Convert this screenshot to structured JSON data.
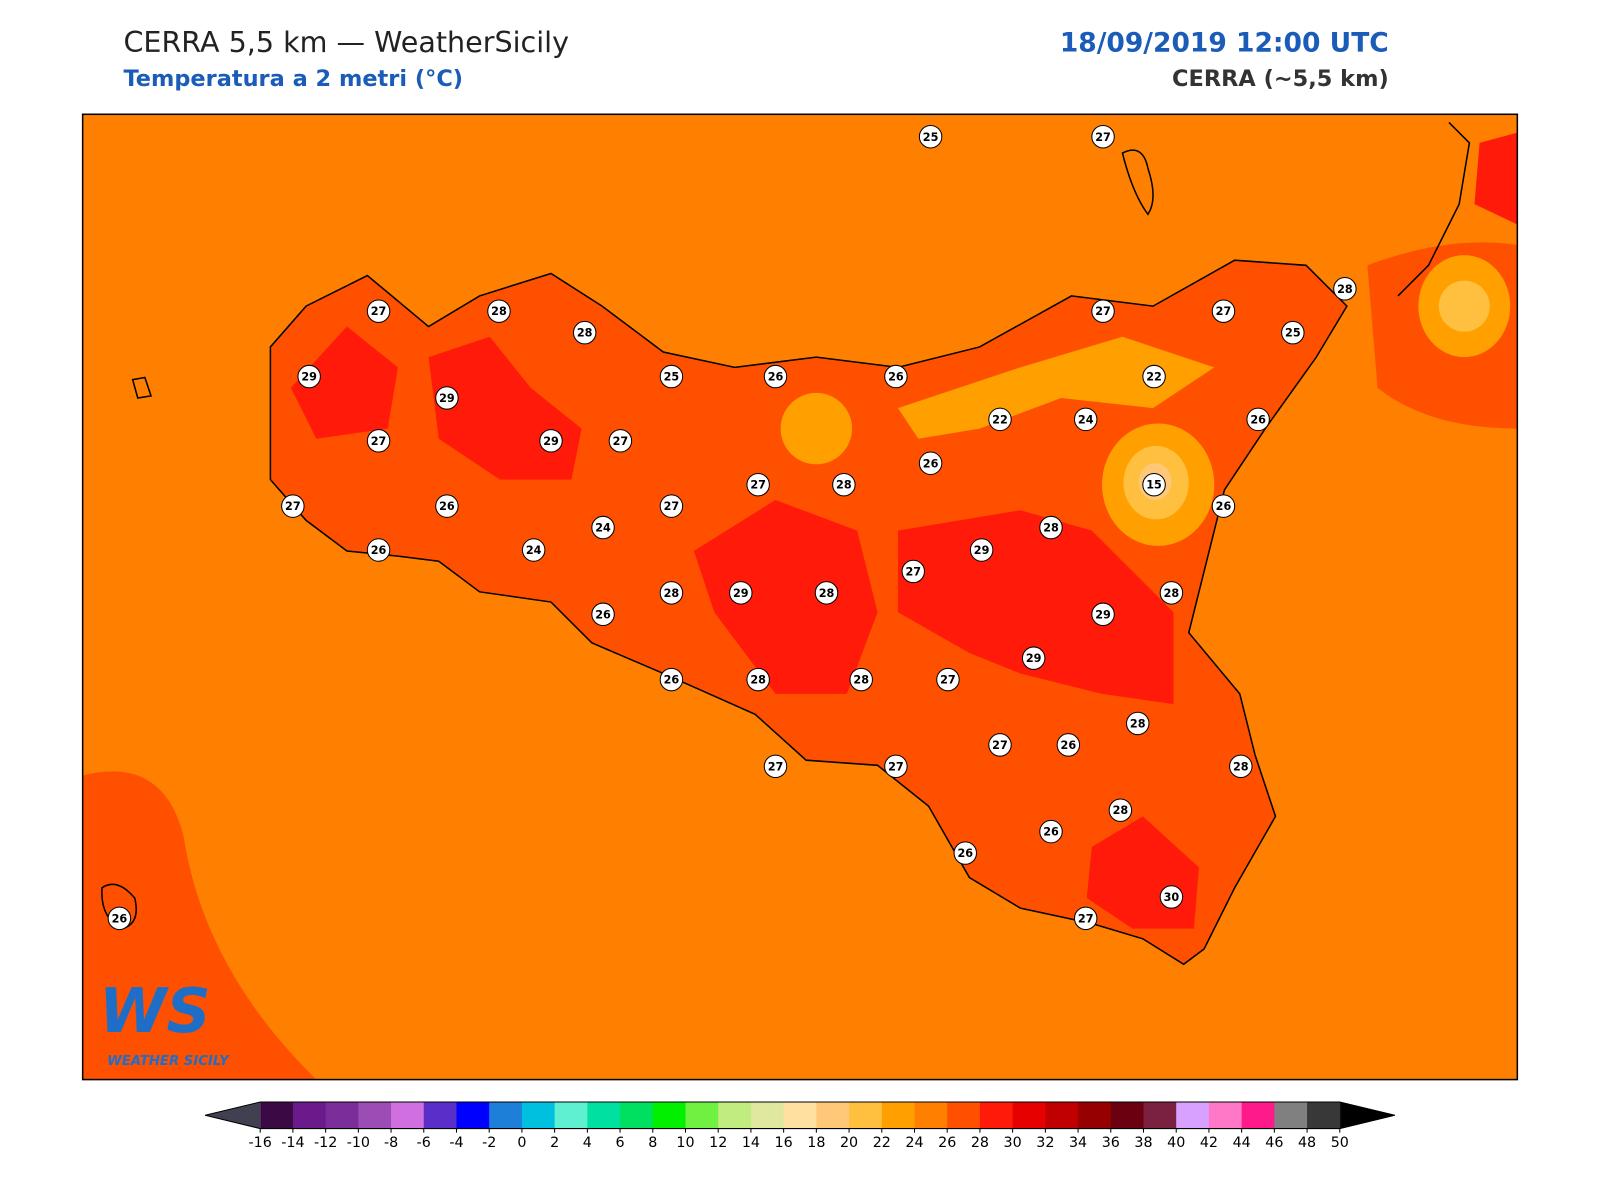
{
  "header": {
    "title": "CERRA 5,5 km — WeatherSicily",
    "subtitle": "Temperatura a 2 metri (°C)",
    "datetime": "18/09/2019 12:00 UTC",
    "model": "CERRA (~5,5 km)"
  },
  "map": {
    "background_color": "#ff8000"
  },
  "stations": [
    25,
    27,
    27,
    28,
    28,
    27,
    27,
    28,
    25,
    29,
    29,
    25,
    26,
    26,
    22,
    27,
    29,
    27,
    22,
    24,
    26,
    26,
    15,
    27,
    28,
    27,
    26,
    27,
    26,
    24,
    28,
    26,
    24,
    29,
    27,
    28,
    29,
    28,
    28,
    29,
    26,
    29,
    26,
    28,
    28,
    27,
    28,
    27,
    26,
    27,
    27,
    28,
    28,
    26,
    26,
    30,
    27,
    26
  ],
  "colorbar": {
    "ticks": [
      -16,
      -14,
      -12,
      -10,
      -8,
      -6,
      -4,
      -2,
      0,
      2,
      4,
      6,
      8,
      10,
      12,
      14,
      16,
      18,
      20,
      22,
      24,
      26,
      28,
      30,
      32,
      34,
      36,
      38,
      40,
      42,
      44,
      46,
      48,
      50
    ],
    "colors": [
      "#3b0a45",
      "#6a1a8a",
      "#7b2d9a",
      "#9b4db5",
      "#d070e0",
      "#5a2ec8",
      "#0000ff",
      "#1e7fd8",
      "#00c0e0",
      "#5ef0d0",
      "#00e0a0",
      "#00e060",
      "#00f000",
      "#70f040",
      "#c0ec80",
      "#e0e8a0",
      "#ffe0a0",
      "#ffc878",
      "#ffc040",
      "#ffa000",
      "#ff8000",
      "#ff5000",
      "#ff1a0a",
      "#e60000",
      "#c00000",
      "#960000",
      "#6a0010",
      "#7a2040",
      "#d8a0ff",
      "#ff78c8",
      "#ff1a8c",
      "#808080",
      "#383838"
    ],
    "under_color": "#404050",
    "over_color": "#000000"
  },
  "logo": {
    "mark": "WS",
    "text": "WEATHER SICILY"
  }
}
